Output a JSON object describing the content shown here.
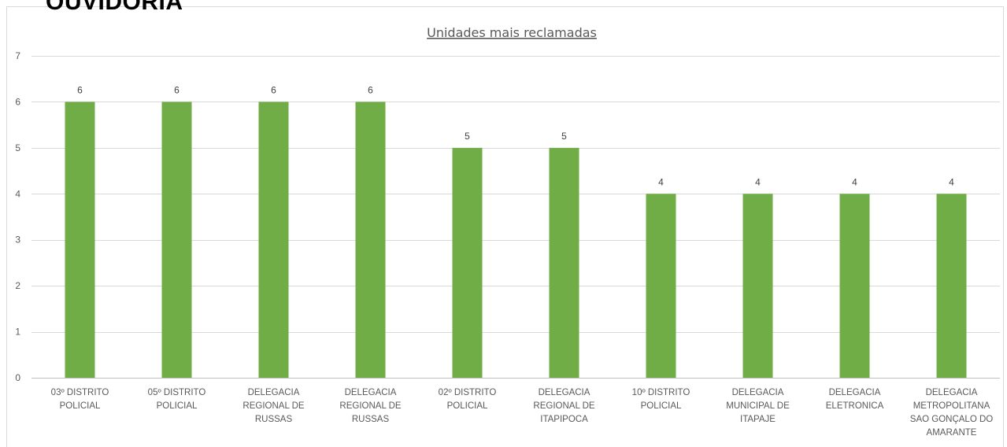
{
  "page": {
    "heading": "OUVIDORIA"
  },
  "colors": {
    "bar": "#70ad47",
    "grid": "#d9d9d9",
    "text": "#595959"
  },
  "chart_data": {
    "type": "bar",
    "title": "Unidades mais reclamadas",
    "xlabel": "",
    "ylabel": "",
    "ylim": [
      0,
      7
    ],
    "yticks": [
      0,
      1,
      2,
      3,
      4,
      5,
      6,
      7
    ],
    "grid": true,
    "legend": "none",
    "data_labels": true,
    "categories": [
      [
        "03º DISTRITO",
        "POLICIAL"
      ],
      [
        "05º DISTRITO",
        "POLICIAL"
      ],
      [
        "DELEGACIA",
        "REGIONAL DE",
        "RUSSAS"
      ],
      [
        "DELEGACIA",
        "REGIONAL DE",
        "RUSSAS"
      ],
      [
        "02º DISTRITO",
        "POLICIAL"
      ],
      [
        "DELEGACIA",
        "REGIONAL DE",
        "ITAPIPOCA"
      ],
      [
        "10º DISTRITO",
        "POLICIAL"
      ],
      [
        "DELEGACIA",
        "MUNICIPAL DE",
        "ITAPAJE"
      ],
      [
        "DELEGACIA",
        "ELETRONICA"
      ],
      [
        "DELEGACIA",
        "METROPOLITANA",
        "SAO GONÇALO DO",
        "AMARANTE"
      ]
    ],
    "values": [
      6,
      6,
      6,
      6,
      5,
      5,
      4,
      4,
      4,
      4
    ]
  }
}
